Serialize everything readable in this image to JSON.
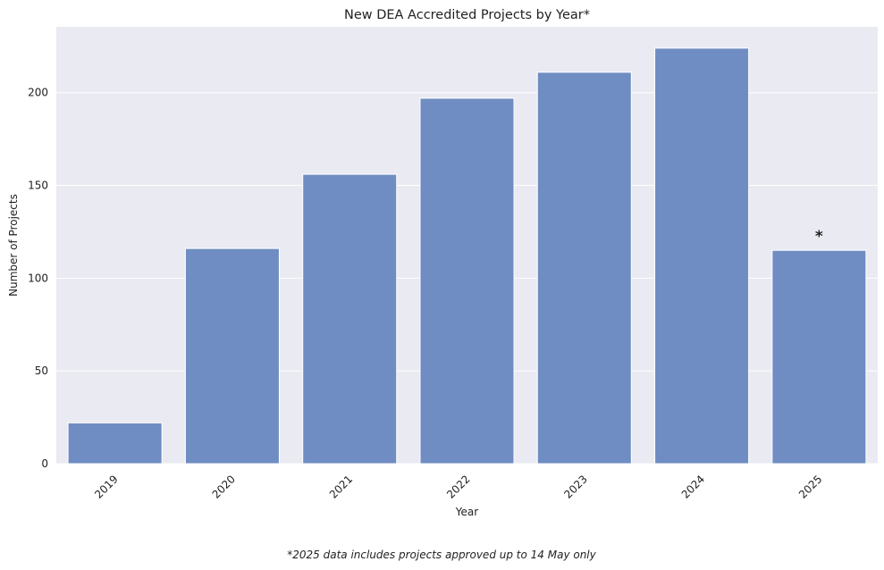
{
  "colors": {
    "bar": "#6f8dc2",
    "plot_background": "#eaeaf2",
    "grid": "#ffffff",
    "text": "#222222"
  },
  "footnote": "*2025 data includes projects approved up to 14 May only",
  "chart_data": {
    "type": "bar",
    "title": "New DEA Accredited Projects by Year*",
    "xlabel": "Year",
    "ylabel": "Number of Projects",
    "categories": [
      "2019",
      "2020",
      "2021",
      "2022",
      "2023",
      "2024",
      "2025"
    ],
    "values": [
      22,
      116,
      156,
      197,
      211,
      224,
      115
    ],
    "yticks": [
      0,
      50,
      100,
      150,
      200
    ],
    "ylim": [
      0,
      235.5
    ],
    "grid": true,
    "legend": "none",
    "annotations": [
      {
        "category": "2025",
        "text": "*"
      }
    ]
  }
}
